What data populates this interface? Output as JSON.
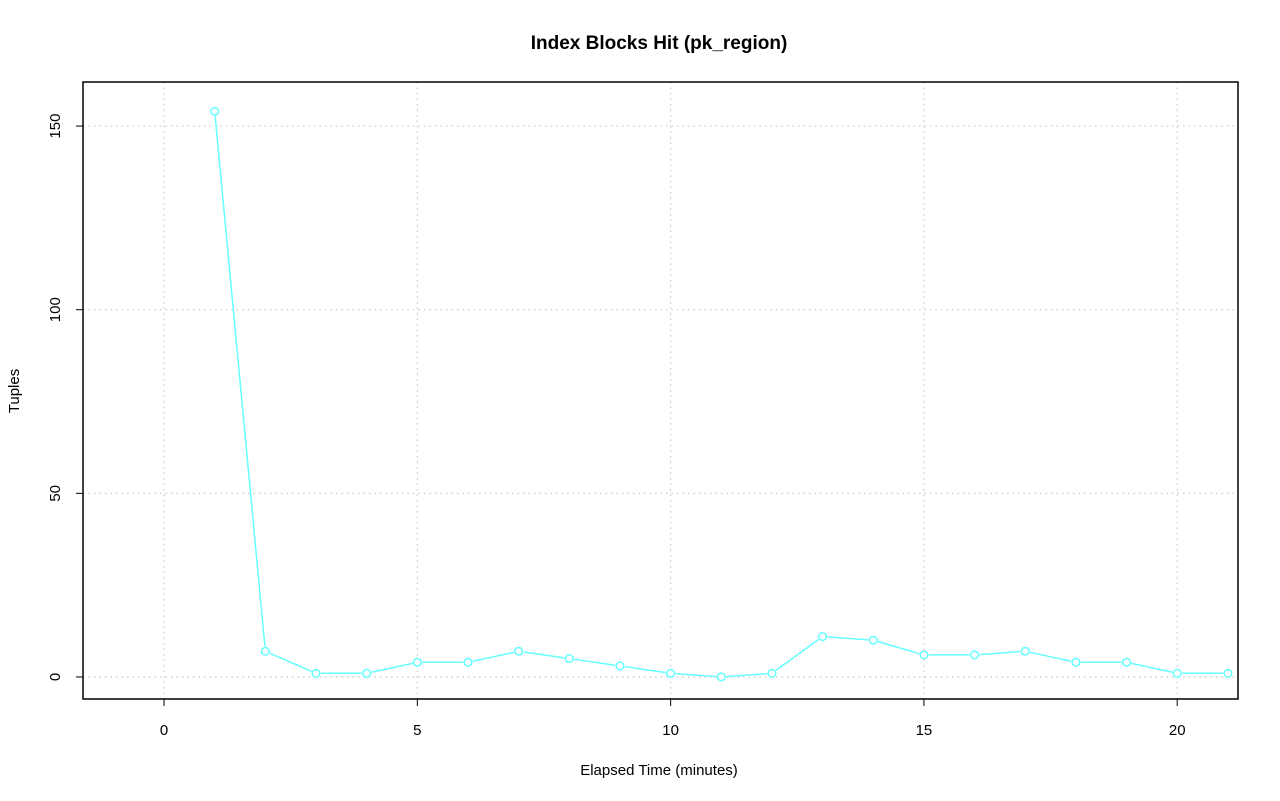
{
  "chart_data": {
    "type": "line",
    "title": "Index Blocks Hit (pk_region)",
    "xlabel": "Elapsed Time (minutes)",
    "ylabel": "Tuples",
    "xlim": [
      -1.6,
      21.2
    ],
    "ylim": [
      -6,
      162
    ],
    "xticks": [
      0,
      5,
      10,
      15,
      20
    ],
    "xtick_labels": [
      "0",
      "5",
      "10",
      "15",
      "20"
    ],
    "yticks": [
      0,
      50,
      100,
      150
    ],
    "ytick_labels": [
      "0",
      "50",
      "100",
      "150"
    ],
    "grid": true,
    "color": "#66ffff",
    "x": [
      1,
      2,
      3,
      4,
      5,
      6,
      7,
      8,
      9,
      10,
      11,
      12,
      13,
      14,
      15,
      16,
      17,
      18,
      19,
      20,
      21
    ],
    "values": [
      154,
      7,
      1,
      1,
      4,
      4,
      7,
      5,
      3,
      1,
      0,
      1,
      11,
      10,
      6,
      6,
      7,
      4,
      4,
      1,
      1
    ]
  }
}
